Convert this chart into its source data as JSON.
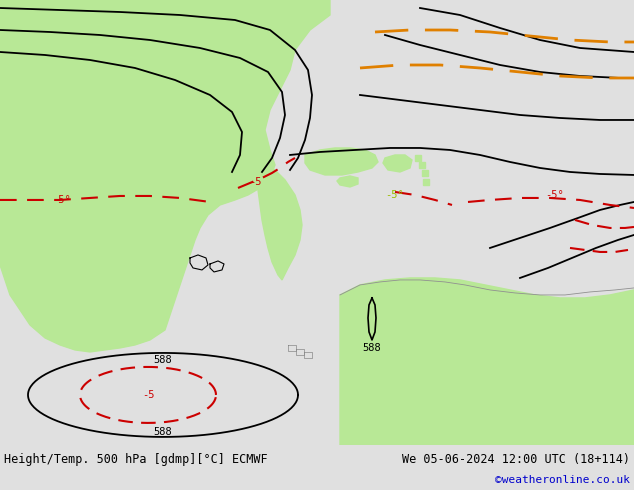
{
  "title_left": "Height/Temp. 500 hPa [gdmp][°C] ECMWF",
  "title_right": "We 05-06-2024 12:00 UTC (18+114)",
  "credit": "©weatheronline.co.uk",
  "bg_color": "#e0e0e0",
  "map_bg": "#d8d8d8",
  "land_green": "#b8e896",
  "text_color_black": "#000000",
  "text_color_red": "#cc0000",
  "text_color_orange": "#e08000",
  "footer_bg": "#cccccc",
  "fig_width": 6.34,
  "fig_height": 4.9,
  "dpi": 100
}
